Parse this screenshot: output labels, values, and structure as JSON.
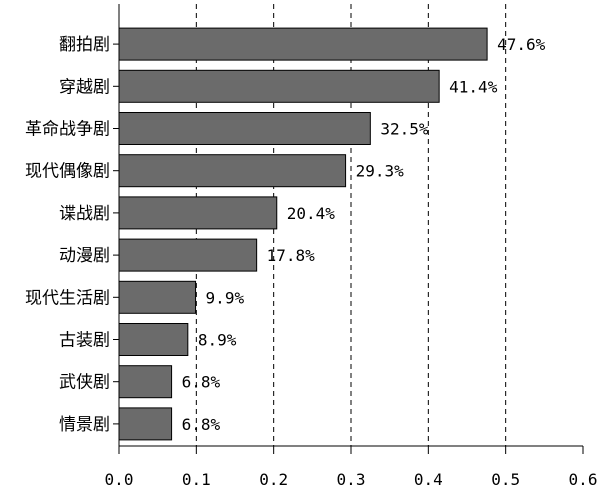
{
  "chart_data": {
    "type": "bar",
    "orientation": "horizontal",
    "categories": [
      "翻拍剧",
      "穿越剧",
      "革命战争剧",
      "现代偶像剧",
      "谍战剧",
      "动漫剧",
      "现代生活剧",
      "古装剧",
      "武侠剧",
      "情景剧"
    ],
    "values": [
      0.476,
      0.414,
      0.325,
      0.293,
      0.204,
      0.178,
      0.099,
      0.089,
      0.068,
      0.068
    ],
    "value_labels": [
      "47.6%",
      "41.4%",
      "32.5%",
      "29.3%",
      "20.4%",
      "17.8%",
      "9.9%",
      "8.9%",
      "6.8%",
      "6.8%"
    ],
    "title": "",
    "xlabel": "",
    "ylabel": "",
    "xlim": [
      0.0,
      0.6
    ],
    "x_ticks": [
      "0.0",
      "0.1",
      "0.2",
      "0.3",
      "0.4",
      "0.5",
      "0.6"
    ],
    "grid": "vertical dashed lines at each x tick",
    "legend": "none",
    "colors": {
      "bar_fill": "#6b6b6b",
      "bar_stroke": "#000000",
      "grid": "#000000",
      "axis": "#000000"
    }
  }
}
